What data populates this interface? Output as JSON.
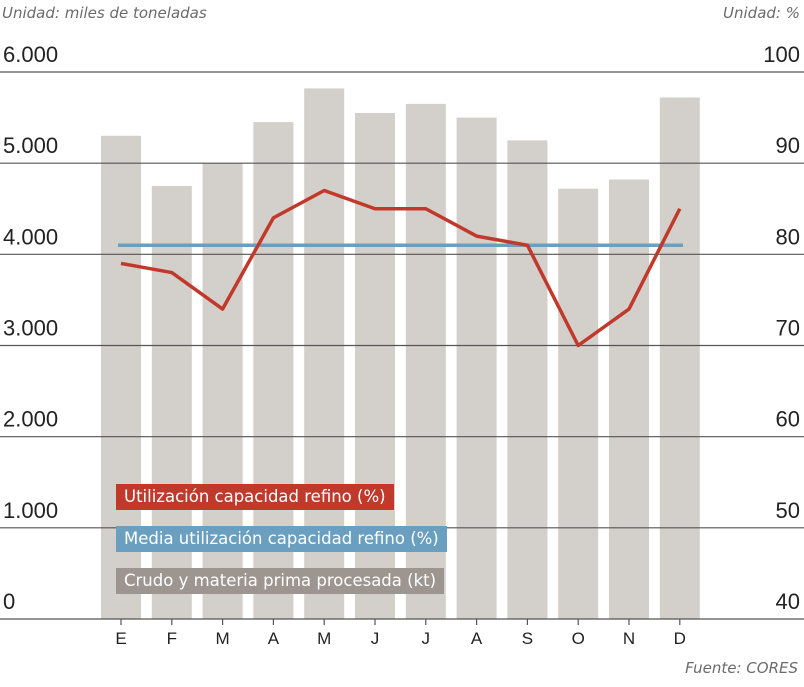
{
  "chart_data": {
    "type": "bar+line",
    "left_unit": "Unidad: miles de toneladas",
    "right_unit": "Unidad: %",
    "source": "Fuente: CORES",
    "categories": [
      "E",
      "F",
      "M",
      "A",
      "M",
      "J",
      "J",
      "A",
      "S",
      "O",
      "N",
      "D"
    ],
    "left_axis": {
      "ylim": [
        0,
        6000
      ],
      "ticks": [
        "0",
        "1.000",
        "2.000",
        "3.000",
        "4.000",
        "5.000",
        "6.000"
      ]
    },
    "right_axis": {
      "ylim": [
        40,
        100
      ],
      "ticks": [
        "40",
        "50",
        "60",
        "70",
        "80",
        "90",
        "100"
      ]
    },
    "series": [
      {
        "name": "Crudo y materia prima procesada (kt)",
        "type": "bar",
        "axis": "left",
        "color": "#d3cfca",
        "values": [
          5300,
          4750,
          5000,
          5450,
          5820,
          5550,
          5650,
          5500,
          5250,
          4720,
          4820,
          5720
        ]
      },
      {
        "name": "Utilización capacidad refino (%)",
        "type": "line",
        "axis": "right",
        "color": "#c0392b",
        "values": [
          79,
          78,
          74,
          84,
          87,
          85,
          85,
          82,
          81,
          70,
          74,
          85
        ]
      },
      {
        "name": "Media utilización capacidad refino (%)",
        "type": "line",
        "axis": "right",
        "color": "#6a9fbf",
        "values": [
          81,
          81,
          81,
          81,
          81,
          81,
          81,
          81,
          81,
          81,
          81,
          81
        ]
      }
    ],
    "legend_colors": [
      "#c0392b",
      "#6a9fbf",
      "#9c9590"
    ]
  }
}
